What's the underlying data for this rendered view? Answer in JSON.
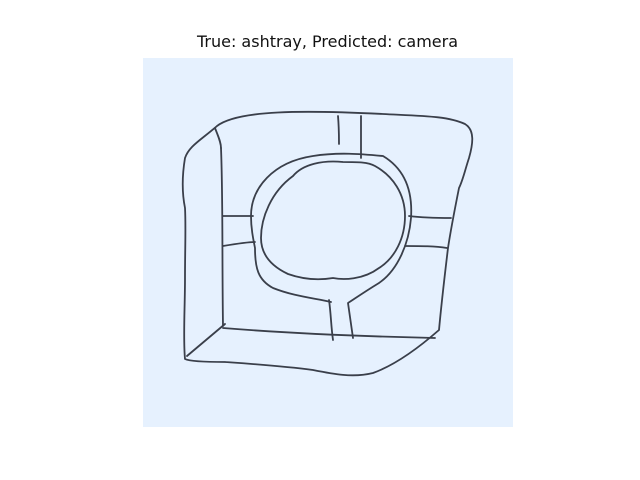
{
  "figure": {
    "title": "True: ashtray, Predicted: camera"
  },
  "colors": {
    "panel_background": "#e6f1fe",
    "stroke": "#3a3f4a",
    "text": "#111111"
  }
}
